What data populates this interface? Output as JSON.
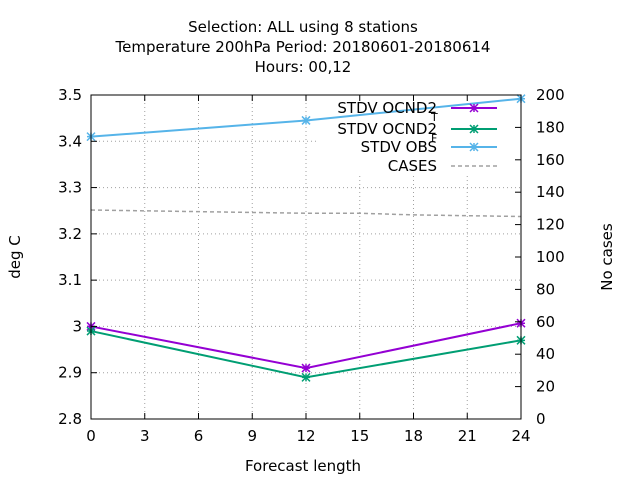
{
  "title_lines": [
    "Selection: ALL using     8 stations",
    "Temperature 200hPa   Period: 20180601-20180614",
    "Hours:  00,12"
  ],
  "chart_data": {
    "type": "line",
    "xlabel": "Forecast length",
    "ylabel": "deg C",
    "y2label": "No cases",
    "xlim": [
      0,
      24
    ],
    "ylim": [
      2.8,
      3.5
    ],
    "y2lim": [
      0,
      200
    ],
    "xticks": [
      0,
      3,
      6,
      9,
      12,
      15,
      18,
      21,
      24
    ],
    "yticks": [
      2.8,
      2.9,
      3.0,
      3.1,
      3.2,
      3.3,
      3.4,
      3.5
    ],
    "ytick_labels": [
      "2.8",
      "2.9",
      "3",
      "3.1",
      "3.2",
      "3.3",
      "3.4",
      "3.5"
    ],
    "y2ticks": [
      0,
      20,
      40,
      60,
      80,
      100,
      120,
      140,
      160,
      180,
      200
    ],
    "grid": true,
    "legend_position": "top-right",
    "series": [
      {
        "name": "STDV OCND2",
        "subscript": "T",
        "color": "#9400d3",
        "marker": "star",
        "axis": "y",
        "x": [
          0,
          12,
          24
        ],
        "values": [
          3.0,
          2.91,
          3.007
        ]
      },
      {
        "name": "STDV OCND2",
        "subscript": "F",
        "color": "#009e73",
        "marker": "star",
        "axis": "y",
        "x": [
          0,
          12,
          24
        ],
        "values": [
          2.99,
          2.89,
          2.97
        ]
      },
      {
        "name": "STDV OBS",
        "color": "#56b4e9",
        "marker": "star",
        "axis": "y",
        "x": [
          0,
          12,
          24
        ],
        "values": [
          3.41,
          3.445,
          3.492
        ]
      },
      {
        "name": "CASES",
        "color": "#a0a0a0",
        "marker": "none",
        "dashed": true,
        "axis": "y2",
        "x": [
          0,
          3,
          6,
          9,
          12,
          15,
          18,
          21,
          24
        ],
        "values": [
          129,
          128.5,
          128,
          127.5,
          127,
          127,
          126,
          125.5,
          125
        ]
      }
    ]
  }
}
